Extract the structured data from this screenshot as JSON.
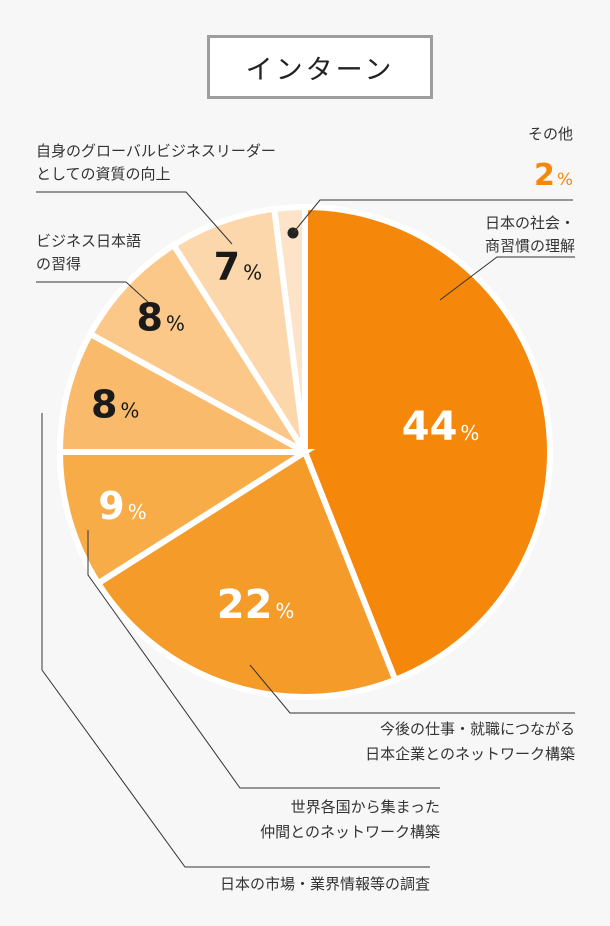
{
  "title": "インターン",
  "chart_data": {
    "type": "pie",
    "unit": "%",
    "slices": [
      {
        "label_lines": [
          "日本の社会・",
          "商習慣の理解"
        ],
        "value": 44,
        "color": "#f5870a",
        "value_color": "#ffffff"
      },
      {
        "label_lines": [
          "今後の仕事・就職につながる",
          "日本企業とのネットワーク構築"
        ],
        "value": 22,
        "color": "#f59b29",
        "value_color": "#ffffff"
      },
      {
        "label_lines": [
          "世界各国から集まった",
          "仲間とのネットワーク構築"
        ],
        "value": 9,
        "color": "#f8ac47",
        "value_color": "#ffffff"
      },
      {
        "label_lines": [
          "日本の市場・業界情報等の調査"
        ],
        "value": 8,
        "color": "#f9bb6b",
        "value_color": "#1a1a1a"
      },
      {
        "label_lines": [
          "ビジネス日本語",
          "の習得"
        ],
        "value": 8,
        "color": "#fbc889",
        "value_color": "#1a1a1a"
      },
      {
        "label_lines": [
          "自身のグローバルビジネスリーダー",
          "としての資質の向上"
        ],
        "value": 7,
        "color": "#fcd7ab",
        "value_color": "#1a1a1a"
      },
      {
        "label_lines": [
          "その他"
        ],
        "value": 2,
        "color": "#fde4c9",
        "value_color": "#f5870a"
      }
    ]
  }
}
